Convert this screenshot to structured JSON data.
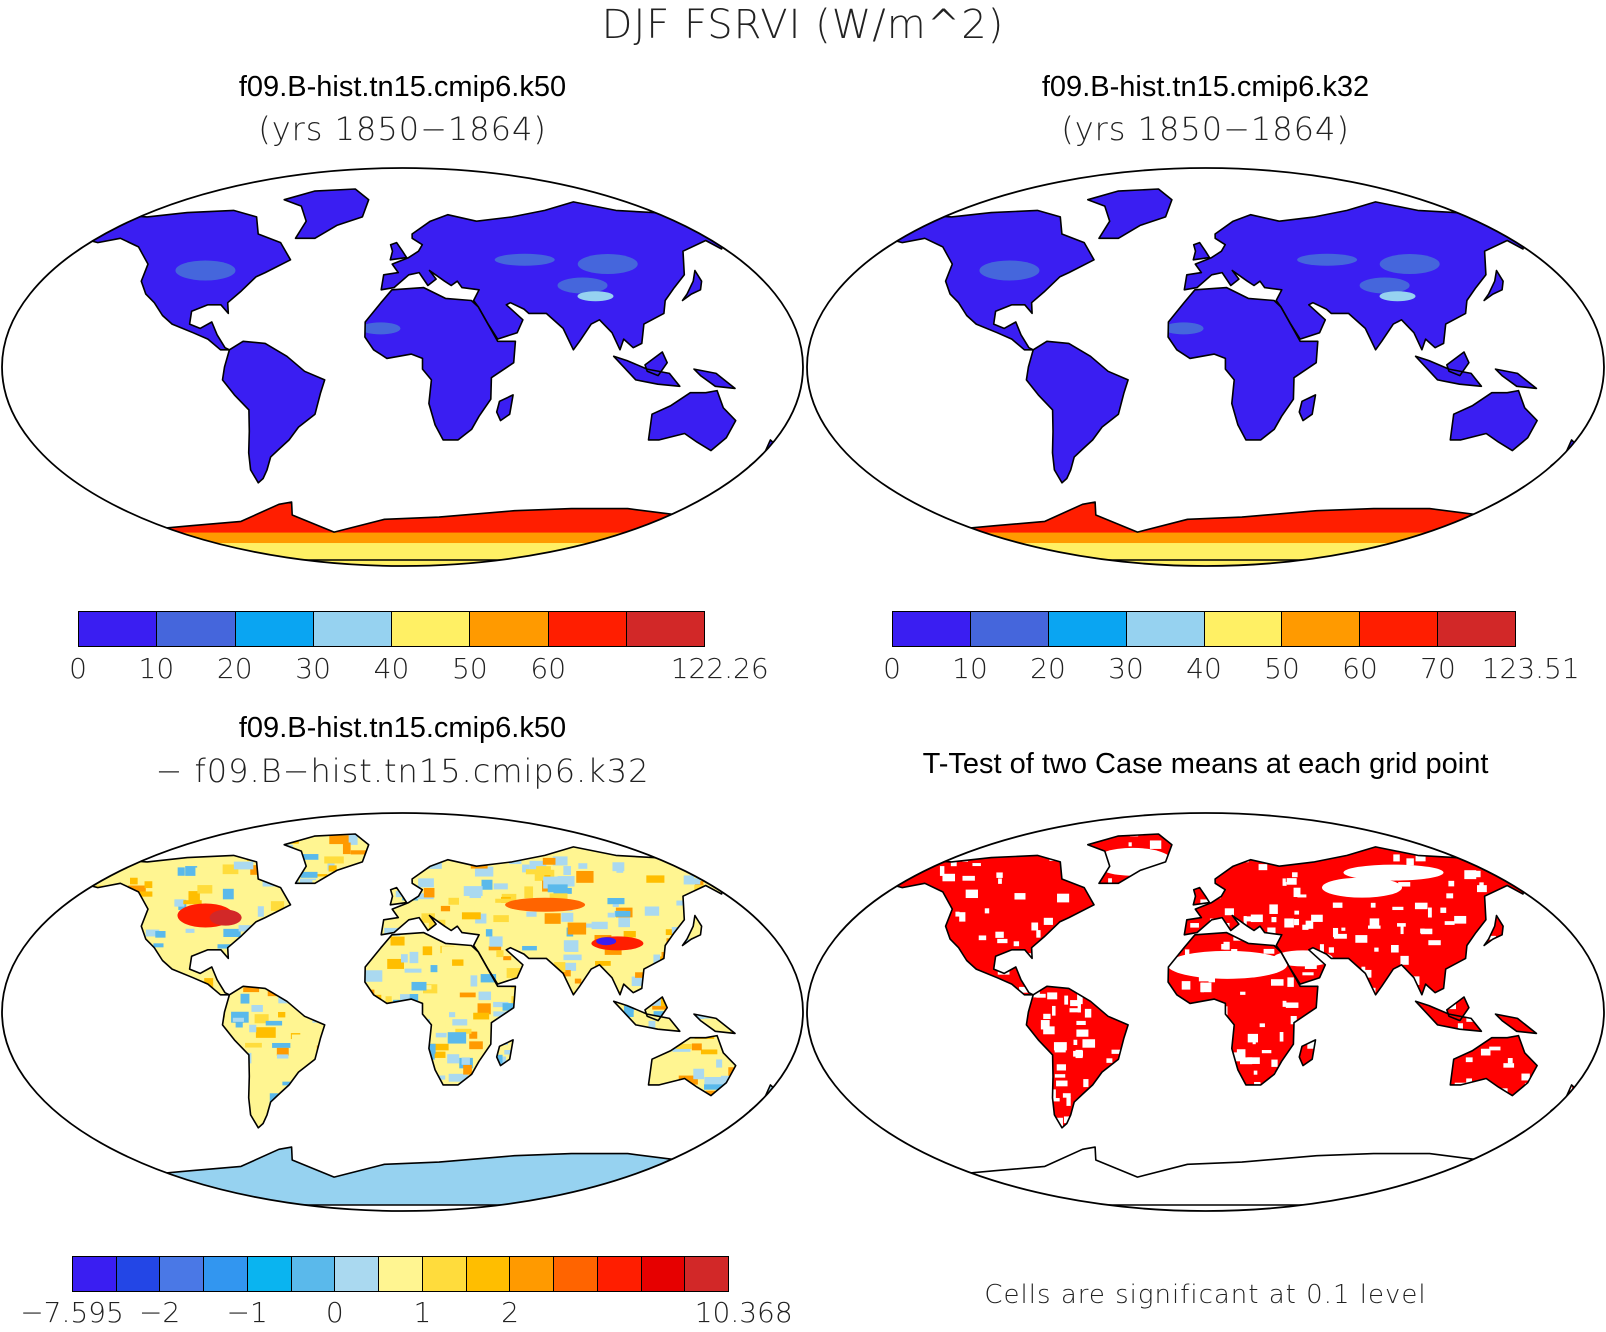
{
  "figure_title": "DJF FSRVI (W/m^2)",
  "panels": [
    {
      "title": "f09.B-hist.tn15.cmip6.k50",
      "subtitle": "(yrs 1850−1864)"
    },
    {
      "title": "f09.B-hist.tn15.cmip6.k32",
      "subtitle": "(yrs 1850−1864)"
    },
    {
      "title": "f09.B-hist.tn15.cmip6.k50",
      "subtitle": "− f09.B−hist.tn15.cmip6.k32"
    },
    {
      "title": "T-Test of two Case means at each grid point",
      "subtitle": ""
    }
  ],
  "colorbars": [
    {
      "colors": [
        "#3a1ef2",
        "#4566dc",
        "#0aa5f2",
        "#96d2f0",
        "#fff064",
        "#ff9a00",
        "#ff1e00",
        "#d22828"
      ],
      "labels": [
        "0",
        "10",
        "20",
        "30",
        "40",
        "50",
        "60",
        "",
        "122.26"
      ]
    },
    {
      "colors": [
        "#3a1ef2",
        "#4566dc",
        "#0aa5f2",
        "#96d2f0",
        "#fff064",
        "#ff9a00",
        "#ff1e00",
        "#d22828"
      ],
      "labels": [
        "0",
        "10",
        "20",
        "30",
        "40",
        "50",
        "60",
        "70",
        "123.51"
      ]
    },
    {
      "colors": [
        "#3a1ef2",
        "#2346e6",
        "#4a78e6",
        "#3296f0",
        "#0ab4f0",
        "#5ab9eb",
        "#aad9f0",
        "#fff591",
        "#ffdc3c",
        "#ffbe00",
        "#ff9a00",
        "#ff6400",
        "#ff1e00",
        "#e60000",
        "#d22828"
      ],
      "labels": [
        "−7.595",
        "",
        "−2",
        "",
        "−1",
        "",
        "0",
        "",
        "1",
        "",
        "2",
        "",
        "",
        "",
        "",
        "10.368"
      ]
    }
  ],
  "significance_note": "Cells are significant at 0.1 level",
  "map": {
    "projection": "robinson",
    "field_colors": {
      "land_low": "#3a1ef2",
      "antarctica": [
        "#ff1e00",
        "#ff9a00",
        "#fff064"
      ],
      "diff_neutral": "#fff591",
      "diff_negative": "#aad9f0",
      "diff_positive": "#ff1e00",
      "significant": "#ff0000"
    }
  }
}
